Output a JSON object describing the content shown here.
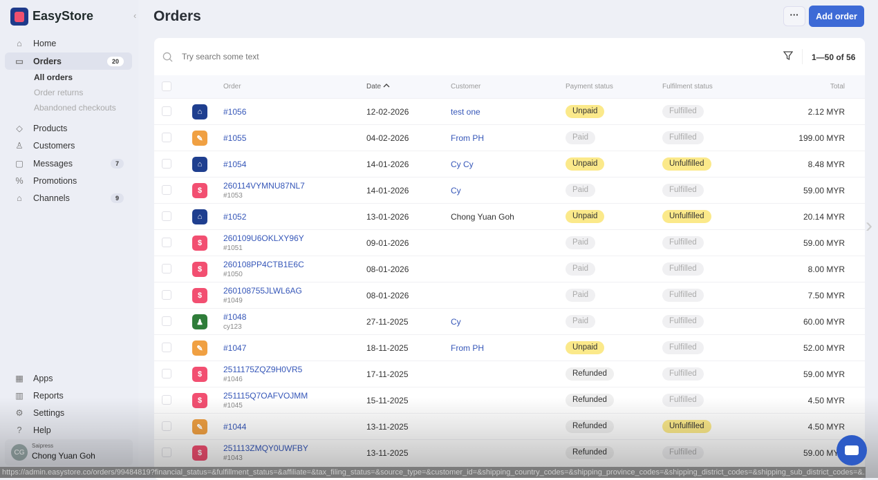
{
  "app": {
    "brand": "EasyStore"
  },
  "sidebar": {
    "items": [
      {
        "label": "Home",
        "icon": "home-icon"
      },
      {
        "label": "Orders",
        "icon": "inbox-icon",
        "badge": "20",
        "active": true
      },
      {
        "label": "Products",
        "icon": "tag-icon"
      },
      {
        "label": "Customers",
        "icon": "user-icon"
      },
      {
        "label": "Messages",
        "icon": "chat-icon",
        "badge": "7"
      },
      {
        "label": "Promotions",
        "icon": "discount-icon"
      },
      {
        "label": "Channels",
        "icon": "store-icon",
        "badge": "9"
      }
    ],
    "orders_sub": [
      "All orders",
      "Order returns",
      "Abandoned checkouts"
    ],
    "bottom": [
      {
        "label": "Apps",
        "icon": "grid-icon"
      },
      {
        "label": "Reports",
        "icon": "chart-icon"
      },
      {
        "label": "Settings",
        "icon": "gear-icon"
      },
      {
        "label": "Help",
        "icon": "help-icon"
      }
    ],
    "user": {
      "initials": "CG",
      "org": "Saipress",
      "name": "Chong Yuan Goh"
    }
  },
  "header": {
    "title": "Orders",
    "more": "···",
    "add_order": "Add order"
  },
  "search": {
    "placeholder": "Try search some text"
  },
  "pager": "1—50 of 56",
  "columns": {
    "order": "Order",
    "date": "Date",
    "customer": "Customer",
    "payment": "Payment status",
    "fulfilment": "Fulfilment status",
    "total": "Total"
  },
  "colors": {
    "store": "#1f3f8f",
    "draft": "#f0a042",
    "pos": "#f24f71",
    "customer": "#2f7d3a",
    "accent": "#3d6ad6"
  },
  "rows": [
    {
      "icon": "store",
      "order": "#1056",
      "sub": "",
      "date": "12-02-2026",
      "customer": "test one",
      "link": true,
      "payment": "Unpaid",
      "fulfilment": "Fulfilled",
      "total": "2.12 MYR"
    },
    {
      "icon": "draft",
      "order": "#1055",
      "sub": "",
      "date": "04-02-2026",
      "customer": "From PH",
      "link": true,
      "payment": "Paid",
      "fulfilment": "Fulfilled",
      "total": "199.00 MYR"
    },
    {
      "icon": "store",
      "order": "#1054",
      "sub": "",
      "date": "14-01-2026",
      "customer": "Cy Cy",
      "link": true,
      "payment": "Unpaid",
      "fulfilment": "Unfulfilled",
      "total": "8.48 MYR"
    },
    {
      "icon": "pos",
      "order": "260114VYMNU87NL7",
      "sub": "#1053",
      "date": "14-01-2026",
      "customer": "Cy",
      "link": true,
      "payment": "Paid",
      "fulfilment": "Fulfilled",
      "total": "59.00 MYR"
    },
    {
      "icon": "store",
      "order": "#1052",
      "sub": "",
      "date": "13-01-2026",
      "customer": "Chong Yuan Goh",
      "link": false,
      "payment": "Unpaid",
      "fulfilment": "Unfulfilled",
      "total": "20.14 MYR"
    },
    {
      "icon": "pos",
      "order": "260109U6OKLXY96Y",
      "sub": "#1051",
      "date": "09-01-2026",
      "customer": "",
      "link": false,
      "payment": "Paid",
      "fulfilment": "Fulfilled",
      "total": "59.00 MYR"
    },
    {
      "icon": "pos",
      "order": "260108PP4CTB1E6C",
      "sub": "#1050",
      "date": "08-01-2026",
      "customer": "",
      "link": false,
      "payment": "Paid",
      "fulfilment": "Fulfilled",
      "total": "8.00 MYR"
    },
    {
      "icon": "pos",
      "order": "260108755JLWL6AG",
      "sub": "#1049",
      "date": "08-01-2026",
      "customer": "",
      "link": false,
      "payment": "Paid",
      "fulfilment": "Fulfilled",
      "total": "7.50 MYR"
    },
    {
      "icon": "customer",
      "order": "#1048",
      "sub": "cy123",
      "date": "27-11-2025",
      "customer": "Cy",
      "link": true,
      "payment": "Paid",
      "fulfilment": "Fulfilled",
      "total": "60.00 MYR"
    },
    {
      "icon": "draft",
      "order": "#1047",
      "sub": "",
      "date": "18-11-2025",
      "customer": "From PH",
      "link": true,
      "payment": "Unpaid",
      "fulfilment": "Fulfilled",
      "total": "52.00 MYR"
    },
    {
      "icon": "pos",
      "order": "2511175ZQZ9H0VR5",
      "sub": "#1046",
      "date": "17-11-2025",
      "customer": "",
      "link": false,
      "payment": "Refunded",
      "fulfilment": "Fulfilled",
      "total": "59.00 MYR"
    },
    {
      "icon": "pos",
      "order": "251115Q7OAFVOJMM",
      "sub": "#1045",
      "date": "15-11-2025",
      "customer": "",
      "link": false,
      "payment": "Refunded",
      "fulfilment": "Fulfilled",
      "total": "4.50 MYR"
    },
    {
      "icon": "draft",
      "order": "#1044",
      "sub": "",
      "date": "13-11-2025",
      "customer": "",
      "link": false,
      "payment": "Refunded",
      "fulfilment": "Unfulfilled",
      "total": "4.50 MYR"
    },
    {
      "icon": "pos",
      "order": "251113ZMQY0UWFBY",
      "sub": "#1043",
      "date": "13-11-2025",
      "customer": "",
      "link": false,
      "payment": "Refunded",
      "fulfilment": "Fulfilled",
      "total": "59.00 MYR"
    }
  ],
  "status_url": "https://admin.easystore.co/orders/99484819?financial_status=&fulfillment_status=&affiliate=&tax_filing_status=&source_type=&customer_id=&shipping_country_codes=&shipping_province_codes=&shipping_district_codes=&shipping_sub_district_codes=&..."
}
